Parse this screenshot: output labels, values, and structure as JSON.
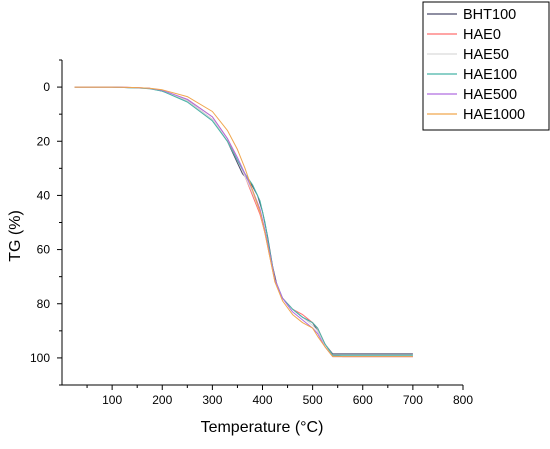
{
  "chart_data": {
    "type": "line",
    "title": "",
    "xlabel": "Temperature (°C)",
    "ylabel": "TG (%)",
    "xlim": [
      0,
      800
    ],
    "ylim": [
      -10,
      110
    ],
    "y_inverted": true,
    "x_ticks": [
      100,
      200,
      300,
      400,
      500,
      600,
      700,
      800
    ],
    "y_ticks": [
      0,
      20,
      40,
      60,
      80,
      100
    ],
    "grid": false,
    "legend_position": "top-right",
    "series": [
      {
        "name": "BHT100",
        "color": "#4a4a6a",
        "points": [
          [
            25,
            0
          ],
          [
            100,
            0
          ],
          [
            150,
            0.3
          ],
          [
            175,
            0.5
          ],
          [
            200,
            1.5
          ],
          [
            250,
            5
          ],
          [
            300,
            12
          ],
          [
            330,
            20
          ],
          [
            350,
            28
          ],
          [
            360,
            32
          ],
          [
            375,
            35
          ],
          [
            390,
            40
          ],
          [
            400,
            46
          ],
          [
            410,
            55
          ],
          [
            420,
            66
          ],
          [
            430,
            74
          ],
          [
            440,
            78
          ],
          [
            460,
            82
          ],
          [
            480,
            85
          ],
          [
            500,
            87
          ],
          [
            510,
            90
          ],
          [
            525,
            95
          ],
          [
            540,
            98.5
          ],
          [
            560,
            98.5
          ],
          [
            600,
            98.5
          ],
          [
            650,
            98.5
          ],
          [
            700,
            98.5
          ]
        ]
      },
      {
        "name": "HAE0",
        "color": "#ff6f6f",
        "points": [
          [
            25,
            0
          ],
          [
            100,
            0
          ],
          [
            150,
            0.2
          ],
          [
            175,
            0.5
          ],
          [
            200,
            1.3
          ],
          [
            250,
            4.5
          ],
          [
            300,
            11
          ],
          [
            330,
            19
          ],
          [
            350,
            27
          ],
          [
            365,
            33
          ],
          [
            380,
            40
          ],
          [
            395,
            47
          ],
          [
            405,
            54
          ],
          [
            415,
            63
          ],
          [
            425,
            72
          ],
          [
            440,
            78
          ],
          [
            460,
            82
          ],
          [
            480,
            84
          ],
          [
            500,
            87
          ],
          [
            510,
            89
          ],
          [
            525,
            95
          ],
          [
            540,
            99
          ],
          [
            560,
            99.5
          ],
          [
            600,
            99.5
          ],
          [
            650,
            99.5
          ],
          [
            700,
            99.5
          ]
        ]
      },
      {
        "name": "HAE50",
        "color": "#d9d9d9",
        "points": [
          [
            25,
            0
          ],
          [
            100,
            0
          ],
          [
            150,
            0.3
          ],
          [
            175,
            0.6
          ],
          [
            200,
            1.4
          ],
          [
            250,
            5
          ],
          [
            300,
            12
          ],
          [
            330,
            20
          ],
          [
            350,
            27
          ],
          [
            365,
            33
          ],
          [
            380,
            39
          ],
          [
            395,
            46
          ],
          [
            405,
            54
          ],
          [
            415,
            63
          ],
          [
            425,
            72
          ],
          [
            440,
            78
          ],
          [
            460,
            82
          ],
          [
            480,
            85
          ],
          [
            500,
            88
          ],
          [
            510,
            90
          ],
          [
            525,
            95
          ],
          [
            540,
            99
          ],
          [
            560,
            99
          ],
          [
            600,
            99
          ],
          [
            650,
            99
          ],
          [
            700,
            99
          ]
        ]
      },
      {
        "name": "HAE100",
        "color": "#48b4a8",
        "points": [
          [
            25,
            0
          ],
          [
            100,
            0
          ],
          [
            150,
            0.3
          ],
          [
            175,
            0.6
          ],
          [
            200,
            1.5
          ],
          [
            250,
            5.5
          ],
          [
            300,
            12.5
          ],
          [
            330,
            20
          ],
          [
            350,
            27
          ],
          [
            365,
            32
          ],
          [
            380,
            36
          ],
          [
            395,
            42
          ],
          [
            405,
            50
          ],
          [
            415,
            61
          ],
          [
            425,
            71
          ],
          [
            440,
            78
          ],
          [
            460,
            82
          ],
          [
            480,
            85
          ],
          [
            500,
            87
          ],
          [
            510,
            89
          ],
          [
            525,
            95
          ],
          [
            540,
            99
          ],
          [
            560,
            99
          ],
          [
            600,
            99
          ],
          [
            650,
            99
          ],
          [
            700,
            99
          ]
        ]
      },
      {
        "name": "HAE500",
        "color": "#b06ee0",
        "points": [
          [
            25,
            0
          ],
          [
            100,
            0
          ],
          [
            150,
            0.2
          ],
          [
            175,
            0.5
          ],
          [
            200,
            1.2
          ],
          [
            250,
            4.5
          ],
          [
            300,
            11
          ],
          [
            330,
            19
          ],
          [
            350,
            26
          ],
          [
            365,
            32
          ],
          [
            380,
            38
          ],
          [
            395,
            45
          ],
          [
            405,
            53
          ],
          [
            415,
            62
          ],
          [
            425,
            71
          ],
          [
            440,
            78
          ],
          [
            460,
            83
          ],
          [
            480,
            86
          ],
          [
            500,
            89
          ],
          [
            510,
            91
          ],
          [
            525,
            96
          ],
          [
            540,
            99.5
          ],
          [
            560,
            99.5
          ],
          [
            600,
            99.5
          ],
          [
            650,
            99.5
          ],
          [
            700,
            99.5
          ]
        ]
      },
      {
        "name": "HAE1000",
        "color": "#f0a64e",
        "points": [
          [
            25,
            0
          ],
          [
            100,
            0
          ],
          [
            150,
            0.2
          ],
          [
            175,
            0.4
          ],
          [
            200,
            1
          ],
          [
            250,
            3.5
          ],
          [
            300,
            9
          ],
          [
            330,
            16
          ],
          [
            350,
            23
          ],
          [
            365,
            30
          ],
          [
            380,
            38
          ],
          [
            395,
            46
          ],
          [
            405,
            54
          ],
          [
            415,
            63
          ],
          [
            425,
            72
          ],
          [
            440,
            79
          ],
          [
            460,
            84
          ],
          [
            480,
            87
          ],
          [
            500,
            89
          ],
          [
            510,
            92
          ],
          [
            525,
            96
          ],
          [
            540,
            99.5
          ],
          [
            560,
            99.5
          ],
          [
            600,
            99.5
          ],
          [
            650,
            99.5
          ],
          [
            700,
            99.5
          ]
        ]
      }
    ]
  }
}
